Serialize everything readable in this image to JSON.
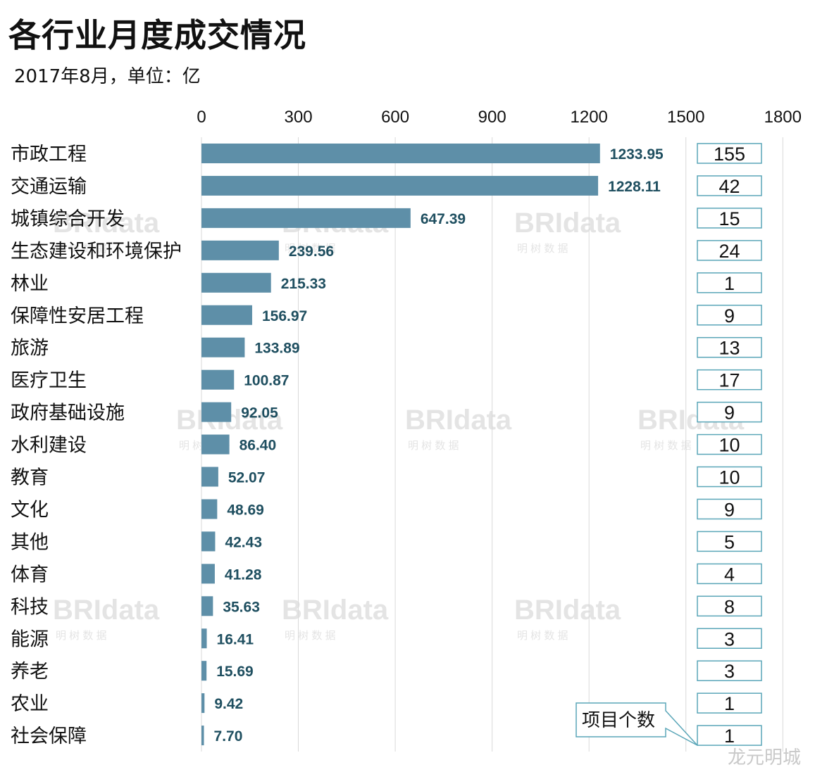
{
  "title": "各行业月度成交情况",
  "subtitle": "2017年8月，单位：亿",
  "corner_watermark": "龙元明城",
  "watermark": {
    "brand": "BRIdata",
    "sub": "明 树 数 据"
  },
  "colors": {
    "bar": "#5e8fa8",
    "value_label": "#1f4f60",
    "count_box_border": "#5aa6b8",
    "gridline": "#d9d9d9"
  },
  "chart_data": {
    "type": "bar",
    "orientation": "horizontal",
    "title": "各行业月度成交情况",
    "subtitle": "2017年8月，单位：亿",
    "xlim": [
      0,
      1800
    ],
    "xticks": [
      0,
      300,
      600,
      900,
      1200,
      1500,
      1800
    ],
    "categories": [
      "市政工程",
      "交通运输",
      "城镇综合开发",
      "生态建设和环境保护",
      "林业",
      "保障性安居工程",
      "旅游",
      "医疗卫生",
      "政府基础设施",
      "水利建设",
      "教育",
      "文化",
      "其他",
      "体育",
      "科技",
      "能源",
      "养老",
      "农业",
      "社会保障"
    ],
    "values": [
      1233.95,
      1228.11,
      647.39,
      239.56,
      215.33,
      156.97,
      133.89,
      100.87,
      92.05,
      86.4,
      52.07,
      48.69,
      42.43,
      41.28,
      35.63,
      16.41,
      15.69,
      9.42,
      7.7
    ],
    "value_labels": [
      "1233.95",
      "1228.11",
      "647.39",
      "239.56",
      "215.33",
      "156.97",
      "133.89",
      "100.87",
      "92.05",
      "86.40",
      "52.07",
      "48.69",
      "42.43",
      "41.28",
      "35.63",
      "16.41",
      "15.69",
      "9.42",
      "7.70"
    ],
    "counts": [
      155,
      42,
      15,
      24,
      1,
      9,
      13,
      17,
      9,
      10,
      10,
      9,
      5,
      4,
      8,
      3,
      3,
      1,
      1
    ],
    "counts_label": "项目个数"
  }
}
